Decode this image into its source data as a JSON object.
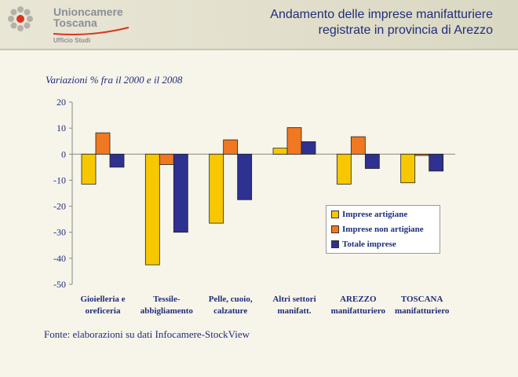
{
  "header": {
    "org_line1": "Unioncamere",
    "org_line2": "Toscana",
    "org_sub": "Ufficio Studi",
    "title_line1": "Andamento delle imprese manifatturiere",
    "title_line2": "registrate in provincia di Arezzo"
  },
  "footer": {
    "source": "Fonte: elaborazioni su dati Infocamere-StockView"
  },
  "colors": {
    "artigiane": "#f7c800",
    "non_artigiane": "#f07820",
    "totale": "#2e3190"
  },
  "chart_data": {
    "type": "bar",
    "title": "",
    "subtitle": "Variazioni % fra il 2000 e il 2008",
    "categories": [
      [
        "Gioielleria e",
        "oreficeria"
      ],
      [
        "Tessile-",
        "abbigliamento"
      ],
      [
        "Pelle, cuoio,",
        "calzature"
      ],
      [
        "Altri settori",
        "manifatt."
      ],
      [
        "AREZZO",
        "manifatturiero"
      ],
      [
        "TOSCANA",
        "manifatturiero"
      ]
    ],
    "series": [
      {
        "name": "Imprese artigiane",
        "values": [
          -11.5,
          -42.5,
          -26.5,
          2.3,
          -11.5,
          -11
        ]
      },
      {
        "name": "Imprese non artigiane",
        "values": [
          8.2,
          -4,
          5.5,
          10.2,
          6.7,
          -0.5
        ]
      },
      {
        "name": "Totale imprese",
        "values": [
          -5,
          -30,
          -17.5,
          4.8,
          -5.5,
          -6.5
        ]
      }
    ],
    "yticks": [
      20,
      10,
      0,
      -10,
      -20,
      -30,
      -40,
      -50
    ],
    "ylim": [
      -50,
      20
    ],
    "legend_position": "right",
    "grid": false
  }
}
